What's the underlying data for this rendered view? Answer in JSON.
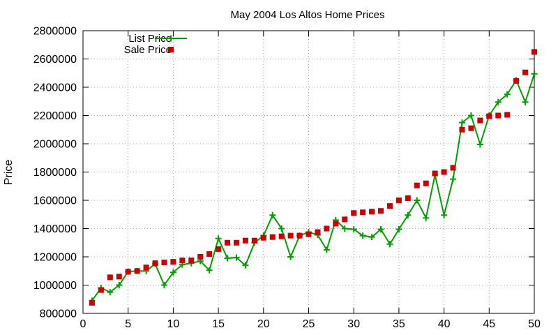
{
  "chart_data": {
    "type": "line",
    "title": "May 2004 Los Altos Home Prices",
    "xlabel": "",
    "ylabel": "Price",
    "xlim": [
      0,
      50
    ],
    "ylim": [
      800000,
      2800000
    ],
    "x_ticks": [
      0,
      5,
      10,
      15,
      20,
      25,
      30,
      35,
      40,
      45,
      50
    ],
    "y_ticks": [
      800000,
      1000000,
      1200000,
      1400000,
      1600000,
      1800000,
      2000000,
      2200000,
      2400000,
      2600000,
      2800000
    ],
    "grid": true,
    "legend_position": "top-left",
    "x": [
      1,
      2,
      3,
      4,
      5,
      6,
      7,
      8,
      9,
      10,
      11,
      12,
      13,
      14,
      15,
      16,
      17,
      18,
      19,
      20,
      21,
      22,
      23,
      24,
      25,
      26,
      27,
      28,
      29,
      30,
      31,
      32,
      33,
      34,
      35,
      36,
      37,
      38,
      39,
      40,
      41,
      42,
      43,
      44,
      45,
      46,
      47,
      48,
      49,
      50
    ],
    "series": [
      {
        "name": "List Price",
        "style": "line-with-plus-markers",
        "color": "#00a000",
        "values": [
          890000,
          980000,
          950000,
          1000000,
          1095000,
          1100000,
          1100000,
          1150000,
          1000000,
          1090000,
          1145000,
          1155000,
          1170000,
          1105000,
          1330000,
          1190000,
          1195000,
          1140000,
          1300000,
          1350000,
          1495000,
          1400000,
          1200000,
          1350000,
          1375000,
          1355000,
          1250000,
          1460000,
          1400000,
          1395000,
          1350000,
          1340000,
          1395000,
          1290000,
          1395000,
          1495000,
          1600000,
          1475000,
          1780000,
          1495000,
          1750000,
          2150000,
          2200000,
          1995000,
          2200000,
          2295000,
          2350000,
          2450000,
          2295000,
          2495000
        ]
      },
      {
        "name": "Sale Price",
        "style": "square-markers",
        "color": "#cc0000",
        "values": [
          875000,
          965000,
          1055000,
          1060000,
          1095000,
          1100000,
          1125000,
          1155000,
          1160000,
          1165000,
          1175000,
          1175000,
          1200000,
          1220000,
          1255000,
          1300000,
          1300000,
          1315000,
          1315000,
          1335000,
          1340000,
          1345000,
          1350000,
          1350000,
          1360000,
          1375000,
          1400000,
          1435000,
          1465000,
          1510000,
          1515000,
          1520000,
          1525000,
          1560000,
          1600000,
          1615000,
          1705000,
          1720000,
          1790000,
          1800000,
          1830000,
          2100000,
          2110000,
          2165000,
          2195000,
          2200000,
          2205000,
          2445000,
          2505000,
          2650000
        ]
      }
    ]
  }
}
